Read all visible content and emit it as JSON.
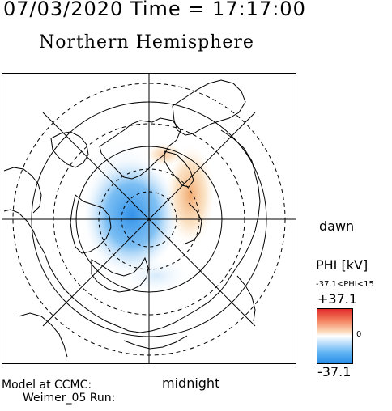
{
  "header": {
    "datetime": "07/03/2020 Time = 17:17:00",
    "title": "Northern Hemisphere"
  },
  "map": {
    "dawn_label": "dawn",
    "midnight_label": "midnight"
  },
  "colorbar": {
    "title": "PHI [kV]",
    "range_text": "-37.1<PHI<15",
    "max_label": "+37.1",
    "zero_label": "0",
    "min_label": "-37.1",
    "colors": {
      "positive": "#e12a2a",
      "neutral": "#ffffff",
      "negative": "#2b8ee8"
    }
  },
  "footer": {
    "model_label": "Model at CCMC:",
    "run_label": "Weimer_05 Run:"
  }
}
